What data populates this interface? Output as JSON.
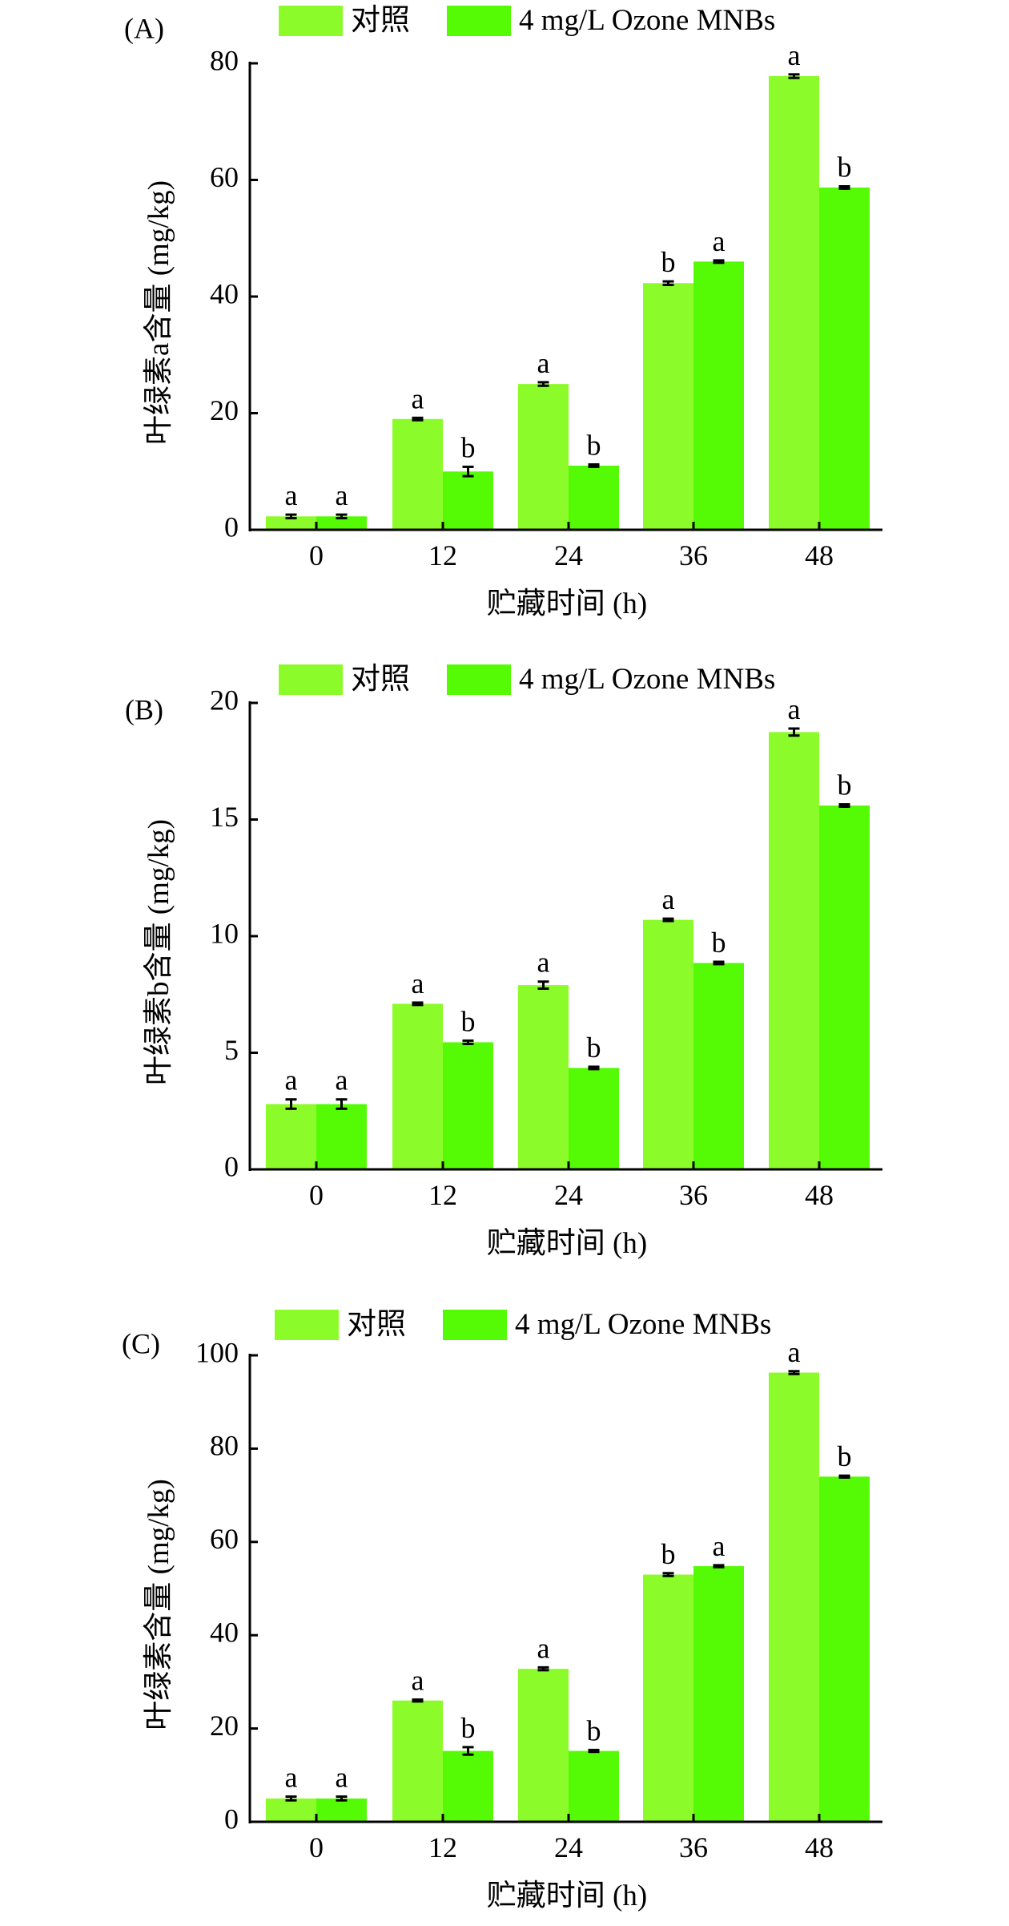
{
  "legend": {
    "control": "对照",
    "treatment": "4 mg/L Ozone MNBs"
  },
  "colors": {
    "control": "#8cfb2a",
    "treatment": "#55fb05",
    "axis": "#000000"
  },
  "chart_data": [
    {
      "type": "bar",
      "panel": "(A)",
      "xlabel": "贮藏时间 (h)",
      "ylabel": "叶绿素a含量 (mg/kg)",
      "categories": [
        "0",
        "12",
        "24",
        "36",
        "48"
      ],
      "ylim": [
        0,
        80
      ],
      "yticks": [
        0,
        20,
        40,
        60,
        80
      ],
      "legend_position": "top",
      "series": [
        {
          "name": "对照",
          "values": [
            2.3,
            19.0,
            25.0,
            42.3,
            77.8
          ],
          "errors": [
            0.3,
            0.2,
            0.3,
            0.3,
            0.3
          ],
          "labels": [
            "a",
            "a",
            "a",
            "b",
            "a"
          ]
        },
        {
          "name": "4 mg/L Ozone MNBs",
          "values": [
            2.3,
            10.0,
            11.0,
            46.0,
            58.7
          ],
          "errors": [
            0.3,
            0.8,
            0.2,
            0.2,
            0.2
          ],
          "labels": [
            "a",
            "b",
            "b",
            "a",
            "b"
          ]
        }
      ]
    },
    {
      "type": "bar",
      "panel": "(B)",
      "xlabel": "贮藏时间 (h)",
      "ylabel": "叶绿素b含量 (mg/kg)",
      "categories": [
        "0",
        "12",
        "24",
        "36",
        "48"
      ],
      "ylim": [
        0,
        20
      ],
      "yticks": [
        0,
        5,
        10,
        15,
        20
      ],
      "legend_position": "top",
      "series": [
        {
          "name": "对照",
          "values": [
            2.8,
            7.1,
            7.9,
            10.7,
            18.75
          ],
          "errors": [
            0.2,
            0.05,
            0.15,
            0.05,
            0.15
          ],
          "labels": [
            "a",
            "a",
            "a",
            "a",
            "a"
          ]
        },
        {
          "name": "4 mg/L Ozone MNBs",
          "values": [
            2.8,
            5.45,
            4.35,
            8.85,
            15.6
          ],
          "errors": [
            0.2,
            0.07,
            0.05,
            0.05,
            0.05
          ],
          "labels": [
            "a",
            "b",
            "b",
            "b",
            "b"
          ]
        }
      ]
    },
    {
      "type": "bar",
      "panel": "(C)",
      "xlabel": "贮藏时间 (h)",
      "ylabel": "叶绿素含量 (mg/kg)",
      "categories": [
        "0",
        "12",
        "24",
        "36",
        "48"
      ],
      "ylim": [
        0,
        100
      ],
      "yticks": [
        0,
        20,
        40,
        60,
        80,
        100
      ],
      "legend_position": "top",
      "series": [
        {
          "name": "对照",
          "values": [
            5.0,
            26.0,
            32.8,
            53.0,
            96.3
          ],
          "errors": [
            0.4,
            0.2,
            0.3,
            0.3,
            0.3
          ],
          "labels": [
            "a",
            "a",
            "a",
            "b",
            "a"
          ]
        },
        {
          "name": "4 mg/L Ozone MNBs",
          "values": [
            5.0,
            15.2,
            15.2,
            54.8,
            74.0
          ],
          "errors": [
            0.4,
            0.8,
            0.2,
            0.2,
            0.2
          ],
          "labels": [
            "a",
            "b",
            "b",
            "a",
            "b"
          ]
        }
      ]
    }
  ]
}
